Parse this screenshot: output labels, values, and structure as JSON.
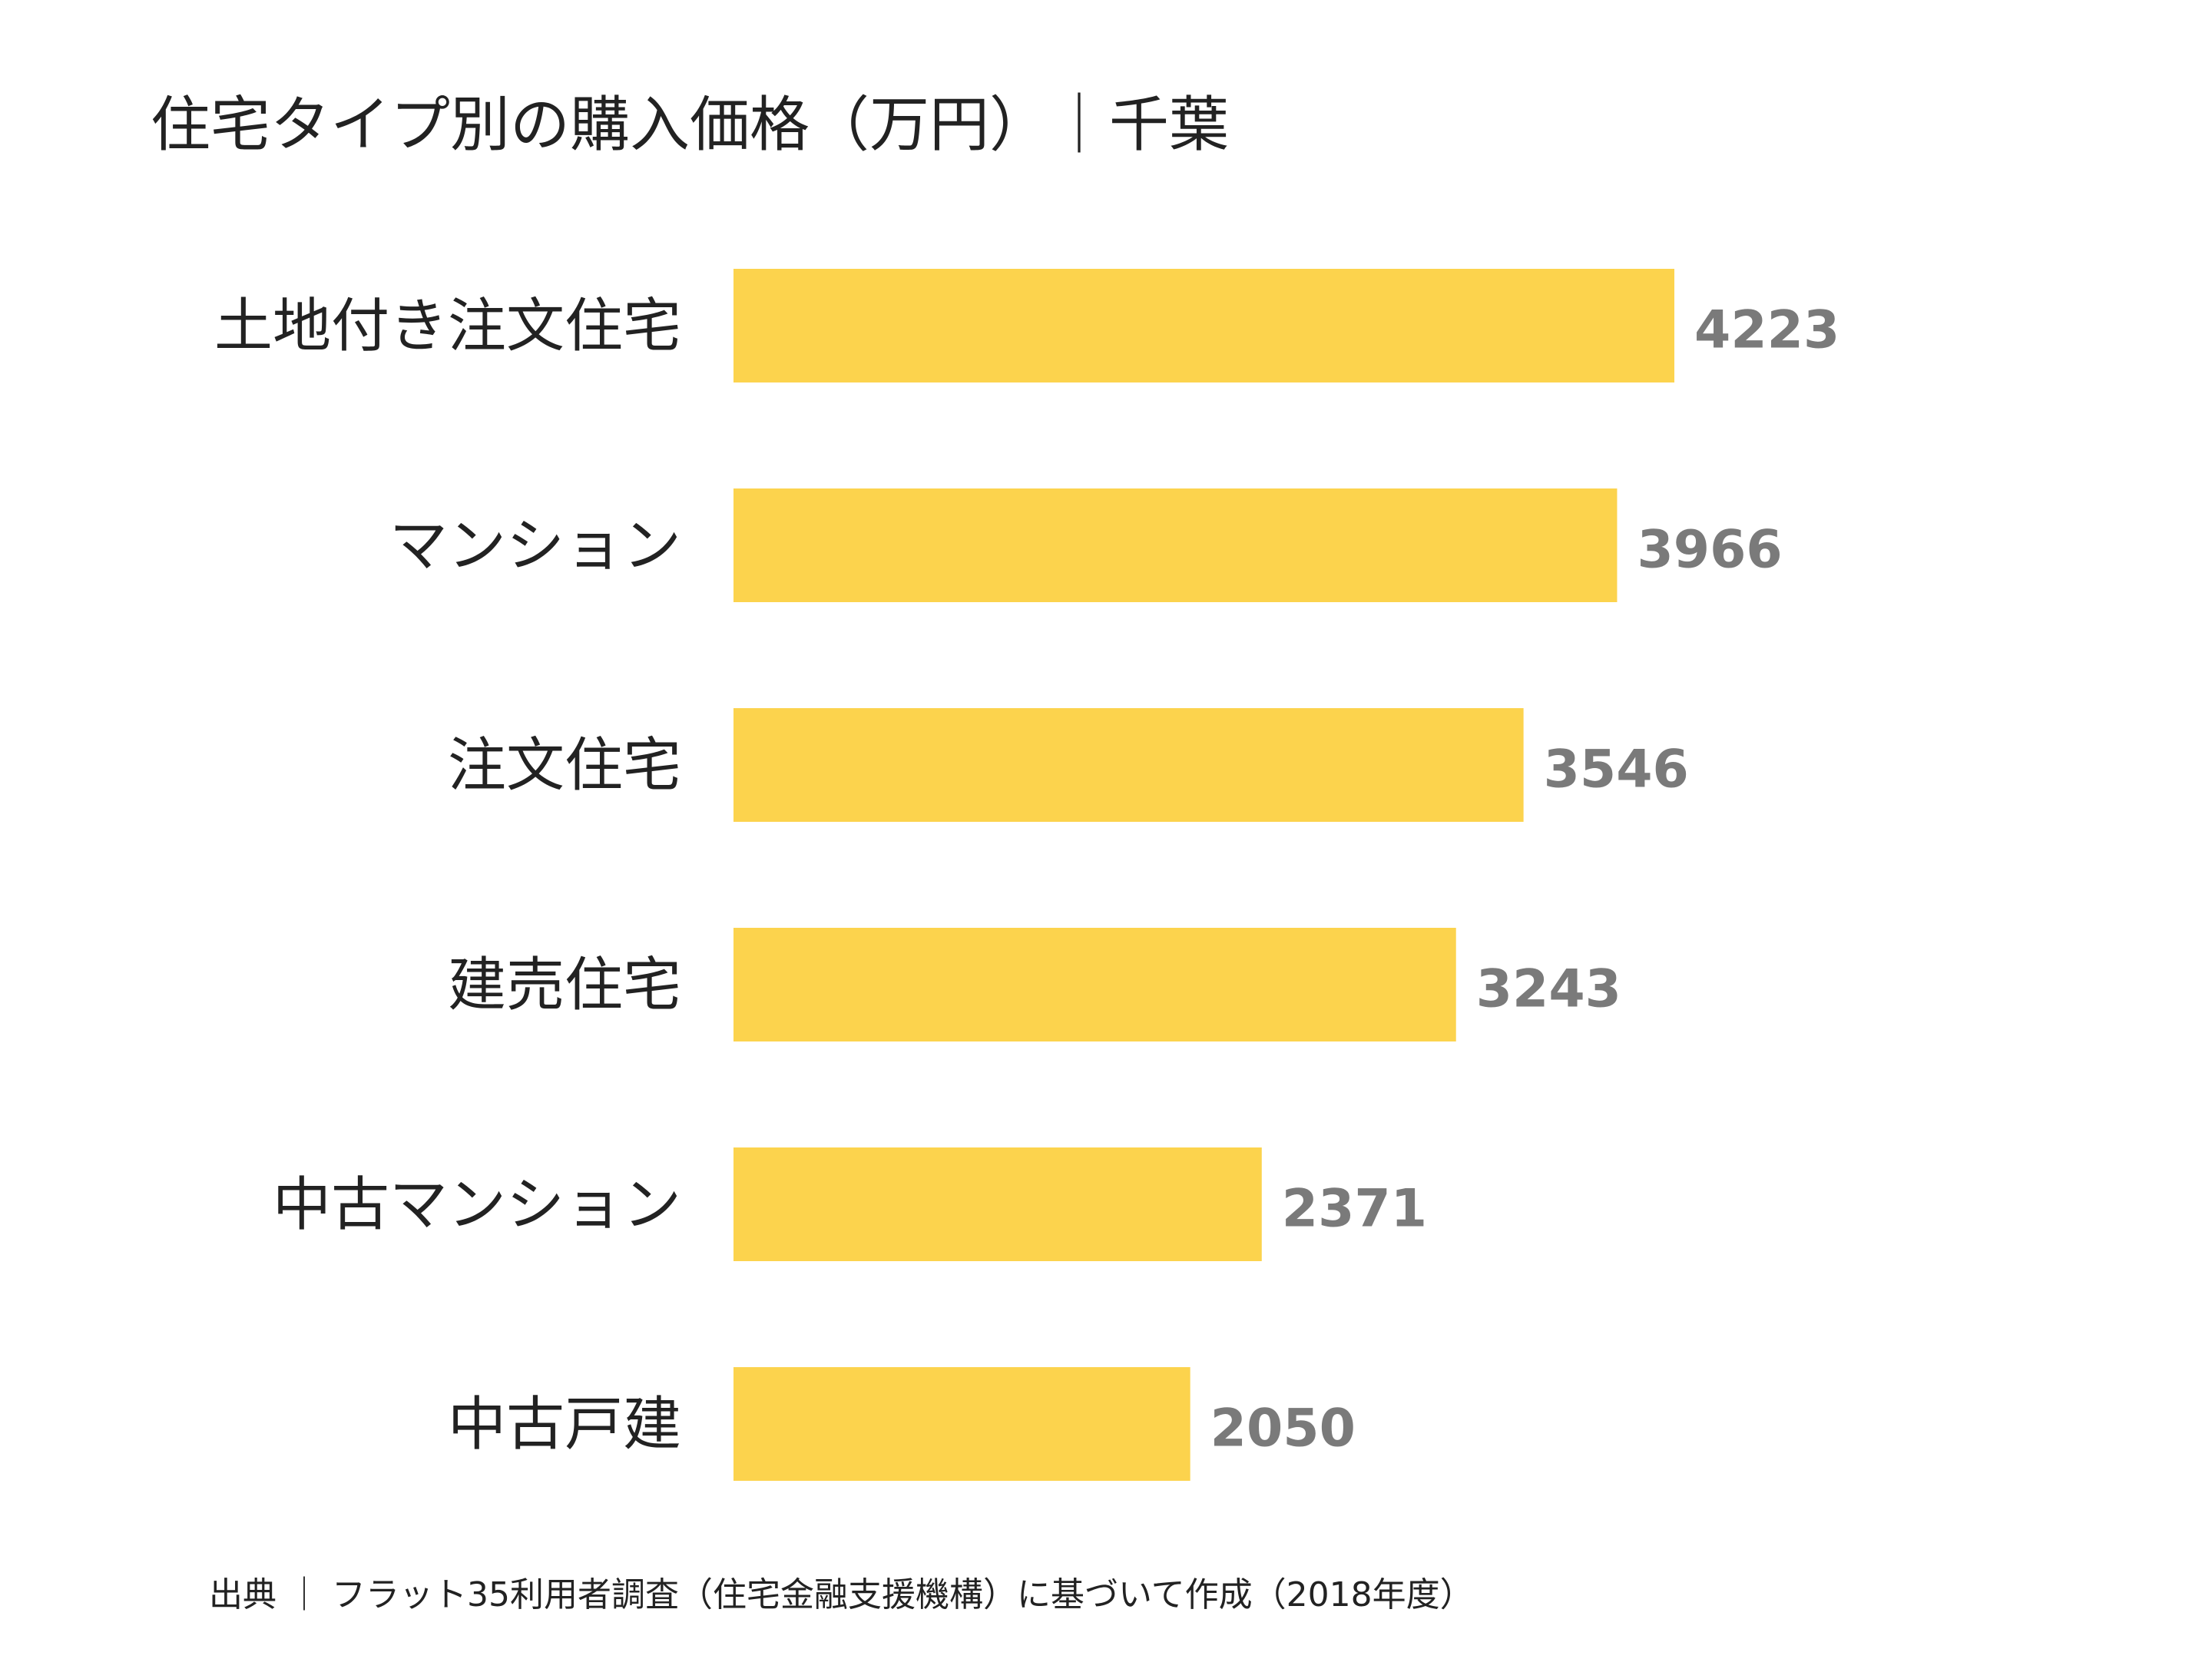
{
  "chart_data": {
    "type": "bar",
    "orientation": "horizontal",
    "title": "住宅タイプ別の購入価格（万円）｜千葉",
    "categories": [
      "土地付き注文住宅",
      "マンション",
      "注文住宅",
      "建売住宅",
      "中古マンション",
      "中古戸建"
    ],
    "values": [
      4223,
      3966,
      3546,
      3243,
      2371,
      2050
    ],
    "xlim": [
      0,
      4223
    ],
    "xlabel": "",
    "ylabel": "",
    "grid": false,
    "legend": "none",
    "bar_color": "#FCD34D",
    "label_color": "#222222",
    "value_color": "#7A7A7A"
  },
  "source": "出典 ｜ フラット35利用者調査（住宅金融支援機構）に基づいて作成（2018年度）"
}
